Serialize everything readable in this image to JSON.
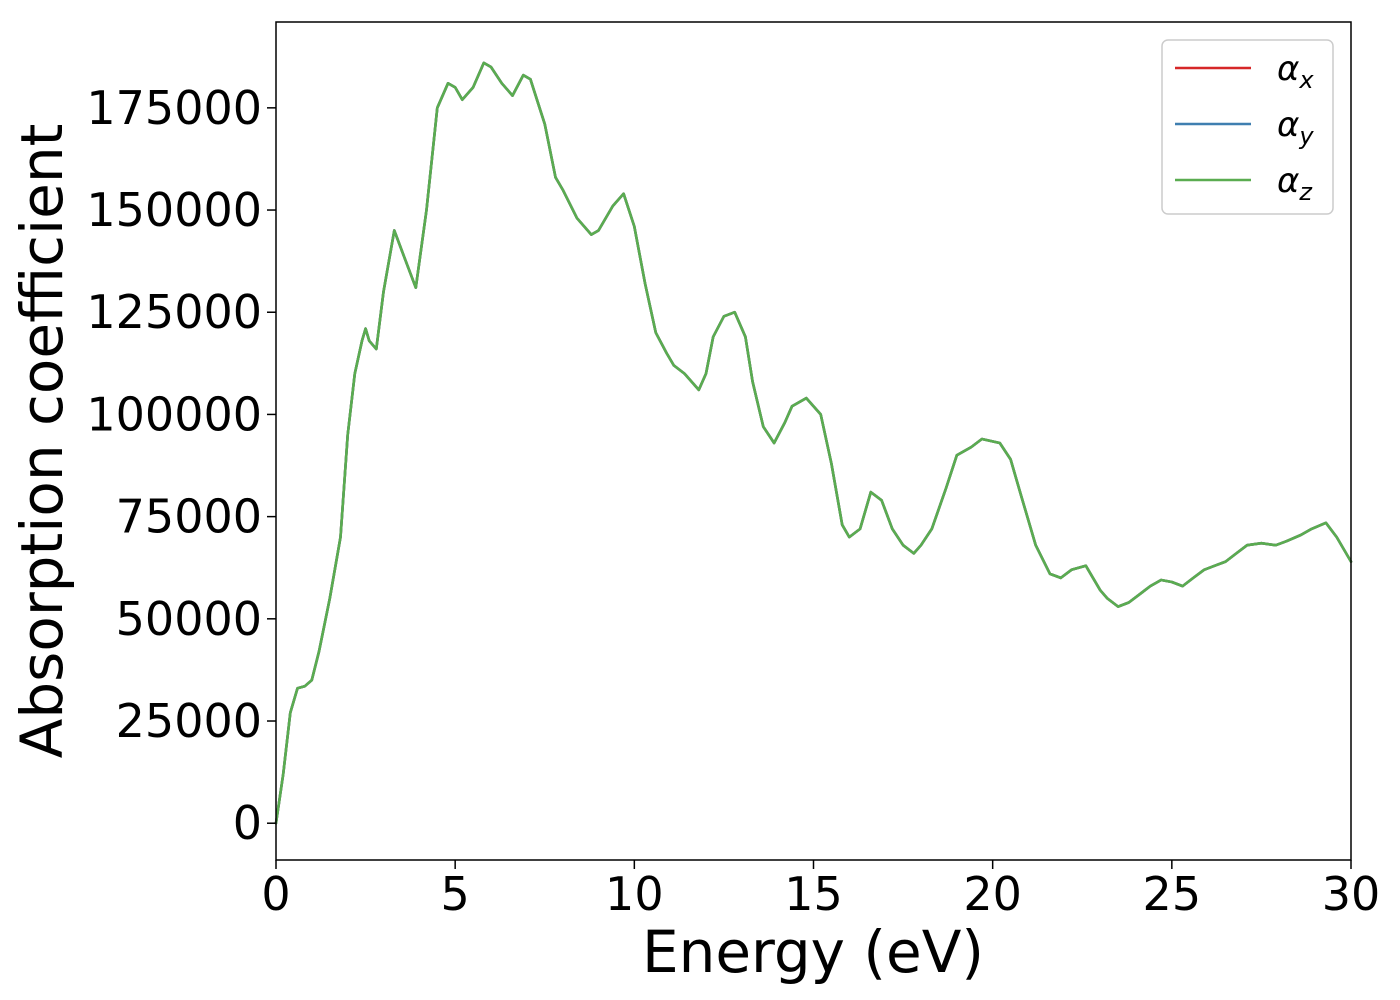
{
  "colors": {
    "alpha_x": "#d62728",
    "alpha_y": "#3f7fb0",
    "alpha_z": "#5aac50",
    "axis": "#000000",
    "legend_border": "#cccccc"
  },
  "chart_data": {
    "type": "line",
    "xlabel": "Energy (eV)",
    "ylabel": "Absorption coefficient",
    "xlim": [
      0,
      30
    ],
    "ylim": [
      -9000,
      196000
    ],
    "xticks": [
      0,
      5,
      10,
      15,
      20,
      25,
      30
    ],
    "yticks": [
      0,
      25000,
      50000,
      75000,
      100000,
      125000,
      150000,
      175000
    ],
    "grid": false,
    "legend_position": "top-right",
    "series": [
      {
        "name": "α",
        "subscript": "x",
        "color_key": "alpha_x"
      },
      {
        "name": "α",
        "subscript": "y",
        "color_key": "alpha_y"
      },
      {
        "name": "α",
        "subscript": "z",
        "color_key": "alpha_z"
      }
    ],
    "x": [
      0,
      0.2,
      0.4,
      0.6,
      0.8,
      1.0,
      1.2,
      1.5,
      1.8,
      2.0,
      2.2,
      2.4,
      2.5,
      2.6,
      2.8,
      3.0,
      3.3,
      3.6,
      3.9,
      4.2,
      4.5,
      4.8,
      5.0,
      5.2,
      5.5,
      5.8,
      6.0,
      6.3,
      6.6,
      6.9,
      7.1,
      7.5,
      7.8,
      8.0,
      8.4,
      8.8,
      9.0,
      9.4,
      9.7,
      10.0,
      10.3,
      10.6,
      10.9,
      11.1,
      11.4,
      11.8,
      12.0,
      12.2,
      12.5,
      12.8,
      13.1,
      13.3,
      13.6,
      13.9,
      14.2,
      14.4,
      14.8,
      15.2,
      15.5,
      15.8,
      16.0,
      16.3,
      16.6,
      16.9,
      17.2,
      17.5,
      17.8,
      18.0,
      18.3,
      18.7,
      19.0,
      19.4,
      19.7,
      20.2,
      20.5,
      20.8,
      21.2,
      21.6,
      21.9,
      22.2,
      22.6,
      23.0,
      23.2,
      23.5,
      23.8,
      24.1,
      24.4,
      24.7,
      25.0,
      25.3,
      25.6,
      25.9,
      26.2,
      26.5,
      26.8,
      27.1,
      27.5,
      27.9,
      28.2,
      28.6,
      28.9,
      29.3,
      29.6,
      30.0
    ],
    "values": [
      0,
      12000,
      27000,
      33000,
      33500,
      35000,
      42000,
      55000,
      70000,
      95000,
      110000,
      118000,
      121000,
      118000,
      116000,
      130000,
      145000,
      138000,
      131000,
      150000,
      175000,
      181000,
      180000,
      177000,
      180000,
      186000,
      185000,
      181000,
      178000,
      183000,
      182000,
      171000,
      158000,
      155000,
      148000,
      144000,
      145000,
      151000,
      154000,
      146000,
      132000,
      120000,
      115000,
      112000,
      110000,
      106000,
      110000,
      119000,
      124000,
      125000,
      119000,
      108000,
      97000,
      93000,
      98000,
      102000,
      104000,
      100000,
      88000,
      73000,
      70000,
      72000,
      81000,
      79000,
      72000,
      68000,
      66000,
      68000,
      72000,
      82000,
      90000,
      92000,
      94000,
      93000,
      89000,
      80000,
      68000,
      61000,
      60000,
      62000,
      63000,
      57000,
      55000,
      53000,
      54000,
      56000,
      58000,
      59500,
      59000,
      58000,
      60000,
      62000,
      63000,
      64000,
      66000,
      68000,
      68500,
      68000,
      69000,
      70500,
      72000,
      73500,
      70000,
      64000
    ]
  }
}
